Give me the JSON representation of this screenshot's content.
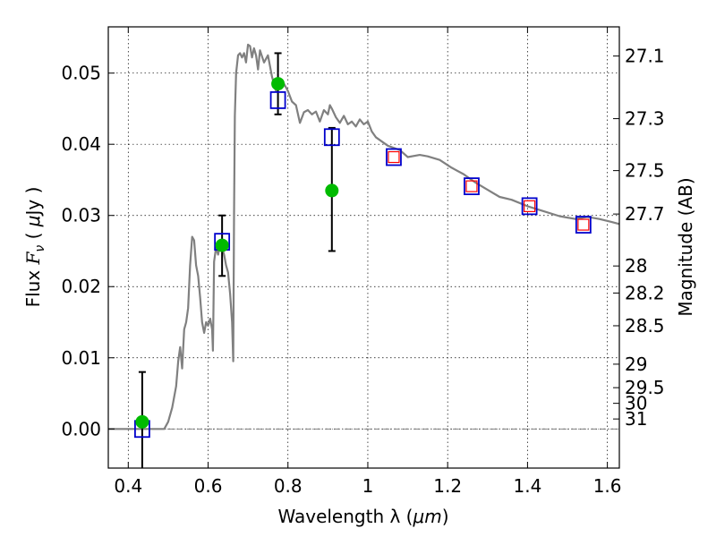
{
  "chart_data": {
    "type": "scatter",
    "xlabel_text": "Wavelength  λ (",
    "xlabel_unit": "μm",
    "xlabel_close": ")",
    "ylabel_prefix": "Flux  ",
    "ylabel_symbol": "F",
    "ylabel_sub": "ν",
    "ylabel_mid": "  (  ",
    "ylabel_mu": "μ",
    "ylabel_suffix": "Jy )",
    "y2label": "Magnitude (AB)",
    "xlim": [
      0.35,
      1.63
    ],
    "ylim": [
      -0.0055,
      0.0565
    ],
    "grid": true,
    "x_ticks": [
      0.4,
      0.6,
      0.8,
      1.0,
      1.2,
      1.4,
      1.6
    ],
    "x_tick_labels": [
      "0.4",
      "0.6",
      "0.8",
      "1",
      "1.2",
      "1.4",
      "1.6"
    ],
    "y_ticks": [
      0.0,
      0.01,
      0.02,
      0.03,
      0.04,
      0.05
    ],
    "y_tick_labels": [
      "0.00",
      "0.01",
      "0.02",
      "0.03",
      "0.04",
      "0.05"
    ],
    "y2_ticks": [
      {
        "label": "27.1",
        "flux": 0.0524
      },
      {
        "label": "27.3",
        "flux": 0.0436
      },
      {
        "label": "27.5",
        "flux": 0.0363
      },
      {
        "label": "27.7",
        "flux": 0.0302
      },
      {
        "label": "28",
        "flux": 0.0229
      },
      {
        "label": "28.2",
        "flux": 0.0191
      },
      {
        "label": "28.5",
        "flux": 0.0145
      },
      {
        "label": "29",
        "flux": 0.0091
      },
      {
        "label": "29.5",
        "flux": 0.0058
      },
      {
        "label": "30",
        "flux": 0.0036
      },
      {
        "label": "31",
        "flux": 0.0014
      }
    ],
    "series": [
      {
        "kind": "model-spectrum",
        "color": "#808080",
        "points": [
          [
            0.35,
            0.0
          ],
          [
            0.49,
            0.0
          ],
          [
            0.5,
            0.001
          ],
          [
            0.51,
            0.003
          ],
          [
            0.52,
            0.006
          ],
          [
            0.525,
            0.0095
          ],
          [
            0.53,
            0.0115
          ],
          [
            0.535,
            0.0085
          ],
          [
            0.54,
            0.014
          ],
          [
            0.545,
            0.015
          ],
          [
            0.55,
            0.017
          ],
          [
            0.555,
            0.023
          ],
          [
            0.56,
            0.027
          ],
          [
            0.565,
            0.0265
          ],
          [
            0.57,
            0.023
          ],
          [
            0.575,
            0.0215
          ],
          [
            0.58,
            0.0185
          ],
          [
            0.585,
            0.015
          ],
          [
            0.59,
            0.0135
          ],
          [
            0.595,
            0.015
          ],
          [
            0.6,
            0.0145
          ],
          [
            0.605,
            0.0155
          ],
          [
            0.61,
            0.014
          ],
          [
            0.612,
            0.011
          ],
          [
            0.615,
            0.0235
          ],
          [
            0.62,
            0.0255
          ],
          [
            0.625,
            0.0245
          ],
          [
            0.63,
            0.026
          ],
          [
            0.635,
            0.0255
          ],
          [
            0.64,
            0.0245
          ],
          [
            0.645,
            0.023
          ],
          [
            0.65,
            0.022
          ],
          [
            0.655,
            0.019
          ],
          [
            0.66,
            0.015
          ],
          [
            0.663,
            0.0095
          ],
          [
            0.665,
            0.03
          ],
          [
            0.667,
            0.044
          ],
          [
            0.67,
            0.05
          ],
          [
            0.675,
            0.0525
          ],
          [
            0.68,
            0.0528
          ],
          [
            0.685,
            0.0522
          ],
          [
            0.69,
            0.0528
          ],
          [
            0.695,
            0.0515
          ],
          [
            0.7,
            0.054
          ],
          [
            0.705,
            0.0538
          ],
          [
            0.71,
            0.0522
          ],
          [
            0.715,
            0.0535
          ],
          [
            0.72,
            0.0525
          ],
          [
            0.725,
            0.0505
          ],
          [
            0.73,
            0.0532
          ],
          [
            0.74,
            0.0515
          ],
          [
            0.75,
            0.0525
          ],
          [
            0.76,
            0.0495
          ],
          [
            0.77,
            0.0475
          ],
          [
            0.78,
            0.049
          ],
          [
            0.79,
            0.0485
          ],
          [
            0.8,
            0.0475
          ],
          [
            0.81,
            0.046
          ],
          [
            0.82,
            0.0455
          ],
          [
            0.83,
            0.043
          ],
          [
            0.84,
            0.0445
          ],
          [
            0.85,
            0.0448
          ],
          [
            0.86,
            0.0442
          ],
          [
            0.87,
            0.0446
          ],
          [
            0.88,
            0.0432
          ],
          [
            0.89,
            0.0448
          ],
          [
            0.9,
            0.0442
          ],
          [
            0.905,
            0.0455
          ],
          [
            0.91,
            0.045
          ],
          [
            0.92,
            0.0438
          ],
          [
            0.93,
            0.043
          ],
          [
            0.94,
            0.044
          ],
          [
            0.95,
            0.0428
          ],
          [
            0.96,
            0.0432
          ],
          [
            0.97,
            0.0425
          ],
          [
            0.98,
            0.0435
          ],
          [
            0.99,
            0.0428
          ],
          [
            1.0,
            0.0432
          ],
          [
            1.01,
            0.0418
          ],
          [
            1.02,
            0.041
          ],
          [
            1.05,
            0.0398
          ],
          [
            1.08,
            0.0392
          ],
          [
            1.1,
            0.0382
          ],
          [
            1.13,
            0.0385
          ],
          [
            1.15,
            0.0383
          ],
          [
            1.18,
            0.0378
          ],
          [
            1.21,
            0.0367
          ],
          [
            1.24,
            0.0358
          ],
          [
            1.27,
            0.0346
          ],
          [
            1.3,
            0.0336
          ],
          [
            1.33,
            0.0326
          ],
          [
            1.36,
            0.0322
          ],
          [
            1.4,
            0.0313
          ],
          [
            1.44,
            0.0306
          ],
          [
            1.48,
            0.0299
          ],
          [
            1.52,
            0.0295
          ],
          [
            1.55,
            0.0298
          ],
          [
            1.58,
            0.0295
          ],
          [
            1.61,
            0.0291
          ],
          [
            1.63,
            0.0288
          ]
        ]
      },
      {
        "kind": "model-fluxes",
        "color": "#0000cc",
        "points": [
          [
            0.435,
            0.0
          ],
          [
            0.635,
            0.0263
          ],
          [
            0.775,
            0.0462
          ],
          [
            0.91,
            0.041
          ],
          [
            1.065,
            0.0382
          ],
          [
            1.26,
            0.0341
          ],
          [
            1.405,
            0.0313
          ],
          [
            1.54,
            0.0287
          ]
        ]
      },
      {
        "kind": "upper-points",
        "color": "#ff0000",
        "points": [
          [
            1.065,
            0.0382
          ],
          [
            1.26,
            0.0341
          ],
          [
            1.405,
            0.0313
          ],
          [
            1.54,
            0.0287
          ]
        ]
      },
      {
        "kind": "observed",
        "color": "#00bb00",
        "points": [
          {
            "x": 0.435,
            "y": 0.001,
            "ylo": -0.0055,
            "yhi": 0.008
          },
          {
            "x": 0.635,
            "y": 0.0258,
            "ylo": 0.0215,
            "yhi": 0.03
          },
          {
            "x": 0.775,
            "y": 0.0485,
            "ylo": 0.0442,
            "yhi": 0.0528
          },
          {
            "x": 0.91,
            "y": 0.0335,
            "ylo": 0.025,
            "yhi": 0.0423
          }
        ]
      }
    ]
  }
}
